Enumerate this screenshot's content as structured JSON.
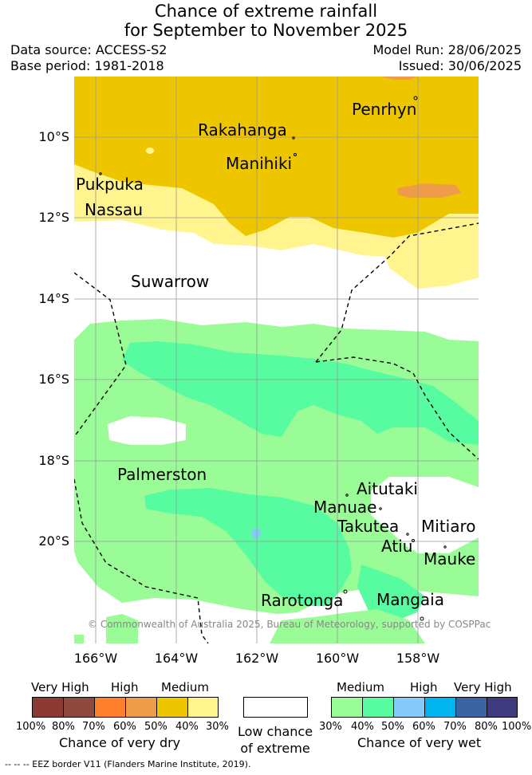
{
  "title_line1": "Chance of extreme rainfall",
  "title_line2": "for September to November 2025",
  "data_source": "Data source: ACCESS-S2",
  "base_period": "Base period: 1981-2018",
  "model_run": "Model Run: 28/06/2025",
  "issued": "Issued: 30/06/2025",
  "places": {
    "penrhyn": "Penrhyn",
    "rakahanga": "Rakahanga",
    "manihiki": "Manihiki",
    "pukpuka": "Pukpuka",
    "nassau": "Nassau",
    "suwarrow": "Suwarrow",
    "palmerston": "Palmerston",
    "aitutaki": "Aitutaki",
    "manuae": "Manuae",
    "takutea": "Takutea",
    "mitiaro": "Mitiaro",
    "atiu": "Atiu",
    "mauke": "Mauke",
    "rarotonga": "Rarotonga",
    "mangaia": "Mangaia"
  },
  "lat_labels": [
    "10°S",
    "12°S",
    "14°S",
    "16°S",
    "18°S",
    "20°S"
  ],
  "lon_labels": [
    "166°W",
    "164°W",
    "162°W",
    "160°W",
    "158°W"
  ],
  "copyright": "© Commonwealth of Australia 2025, Bureau of Meteorology, supported by COSPPac",
  "legend": {
    "dry": {
      "headers": [
        "Very High",
        "High",
        "Medium"
      ],
      "ticks": [
        "100%",
        "80%",
        "70%",
        "60%",
        "50%",
        "40%",
        "30%"
      ],
      "caption": "Chance of very dry",
      "colors": [
        "#8c3a33",
        "#8e4a3f",
        "#ff7f2a",
        "#ee9b4a",
        "#edc600",
        "#fff48e"
      ]
    },
    "low": {
      "line1": "Low chance",
      "line2": "of extreme",
      "color": "#ffffff"
    },
    "wet": {
      "headers": [
        "Medium",
        "High",
        "Very High"
      ],
      "ticks": [
        "30%",
        "40%",
        "50%",
        "60%",
        "70%",
        "80%",
        "100%"
      ],
      "caption": "Chance of very wet",
      "colors": [
        "#9afc96",
        "#57fca1",
        "#86c9fb",
        "#00b5f0",
        "#3a65a2",
        "#403b7e"
      ]
    }
  },
  "eez_note": "--  --  -- EEZ border V11 (Flanders Marine Institute, 2019)."
}
